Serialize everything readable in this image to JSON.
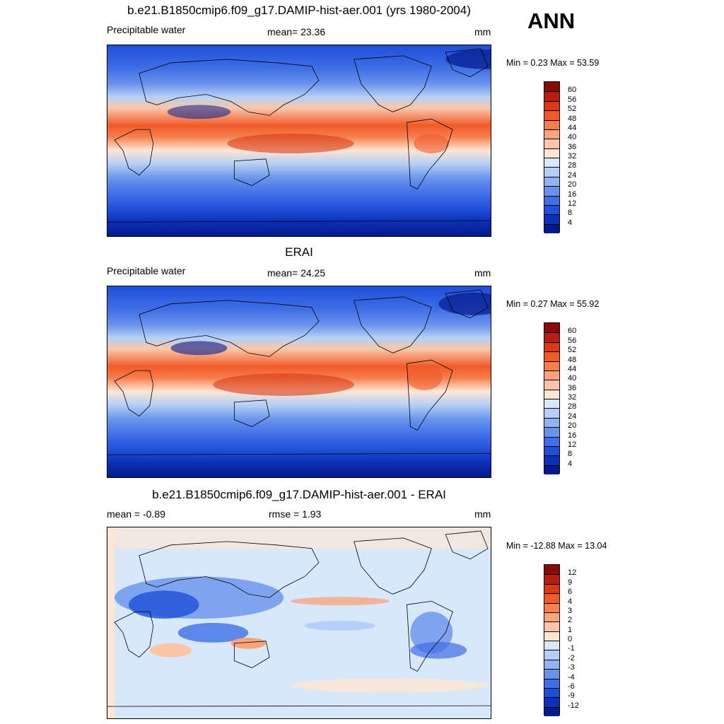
{
  "season": "ANN",
  "panels": [
    {
      "title": "b.e21.B1850cmip6.f09_g17.DAMIP-hist-aer.001 (yrs 1980-2004)",
      "left_label": "Precipitable water",
      "center_label": "mean=  23.36",
      "units": "mm",
      "minmax": "Min =   0.23 Max =  53.59",
      "colorbar_labels": [
        "60",
        "56",
        "52",
        "48",
        "44",
        "40",
        "36",
        "32",
        "28",
        "24",
        "20",
        "16",
        "12",
        "8",
        "4"
      ]
    },
    {
      "title": "ERAI",
      "left_label": "Precipitable water",
      "center_label": "mean=  24.25",
      "units": "mm",
      "minmax": "Min =   0.27 Max =  55.92",
      "colorbar_labels": [
        "60",
        "56",
        "52",
        "48",
        "44",
        "40",
        "36",
        "32",
        "28",
        "24",
        "20",
        "16",
        "12",
        "8",
        "4"
      ]
    },
    {
      "title": "b.e21.B1850cmip6.f09_g17.DAMIP-hist-aer.001 - ERAI",
      "left_label": "mean =  -0.89",
      "center_label": "rmse =   1.93",
      "units": "mm",
      "minmax": "Min = -12.88 Max =  13.04",
      "colorbar_labels": [
        "12",
        "9",
        "6",
        "4",
        "3",
        "2",
        "1",
        "0",
        "-1",
        "-2",
        "-3",
        "-4",
        "-6",
        "-9",
        "-12"
      ]
    }
  ],
  "colors": {
    "abs_scale": [
      "#8a0a0a",
      "#b5200e",
      "#d93a14",
      "#f05a28",
      "#f67f4e",
      "#f9a47c",
      "#fbc6a8",
      "#fde6d4",
      "#d8e8fb",
      "#b5d0f7",
      "#8fb4f2",
      "#6892ec",
      "#3f6ee6",
      "#1f4fd8",
      "#0c31b8",
      "#031a8c"
    ],
    "diff_scale": [
      "#8a0a0a",
      "#b5200e",
      "#d93a14",
      "#f05a28",
      "#f67f4e",
      "#f9a47c",
      "#fbc6a8",
      "#fde6d4",
      "#d8e8fb",
      "#b5d0f7",
      "#8fb4f2",
      "#6892ec",
      "#3f6ee6",
      "#1f4fd8",
      "#0c31b8",
      "#031a8c"
    ]
  }
}
